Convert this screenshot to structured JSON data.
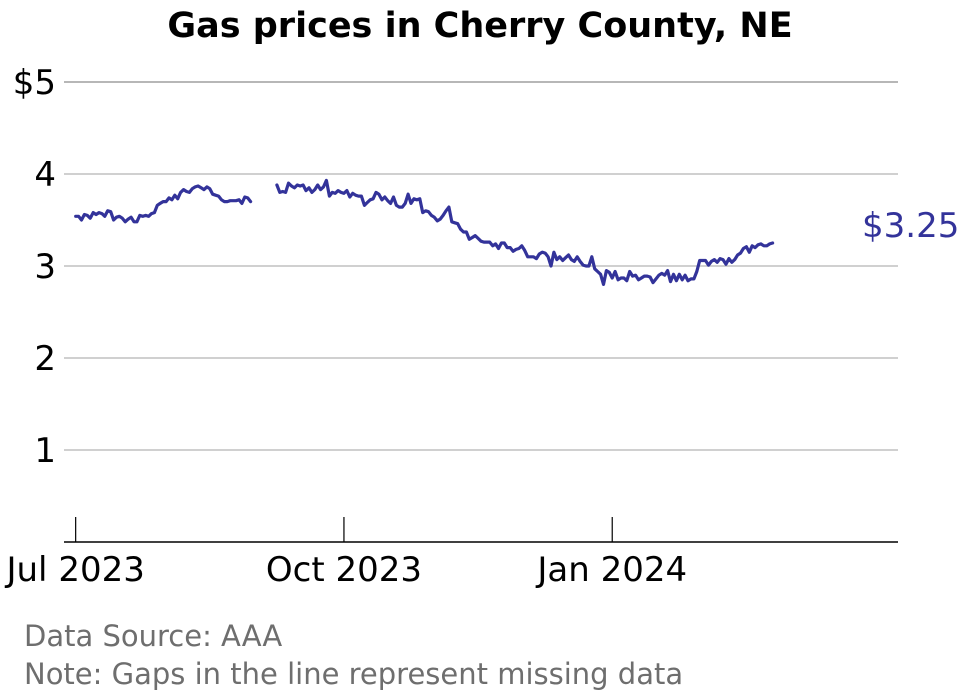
{
  "chart_data": {
    "type": "line",
    "title": "Gas prices in Cherry County, NE",
    "y_prefix": "$",
    "ylim": [
      0,
      5
    ],
    "yticks": [
      1,
      2,
      3,
      4,
      5
    ],
    "ytick_labels": [
      "1",
      "2",
      "3",
      "4",
      "$5"
    ],
    "xlim": [
      "2023-06-27",
      "2024-04-08"
    ],
    "xticks": [
      "2023-07-01",
      "2023-10-01",
      "2024-01-01"
    ],
    "xtick_labels": [
      "Jul 2023",
      "Oct 2023",
      "Jan 2024"
    ],
    "grid": true,
    "line_color": "#33339a",
    "end_label": "$3.25",
    "note_source": "Data Source: AAA",
    "note_gaps": "Note: Gaps in the line represent missing data",
    "series": [
      {
        "segments": [
          {
            "start": "2023-07-01",
            "values": [
              3.54,
              3.54,
              3.5,
              3.56,
              3.55,
              3.52,
              3.58,
              3.56,
              3.58,
              3.57,
              3.54,
              3.6,
              3.59,
              3.5,
              3.53,
              3.54,
              3.52,
              3.48,
              3.51,
              3.53,
              3.48,
              3.48,
              3.55,
              3.54,
              3.55,
              3.54,
              3.57,
              3.58,
              3.66,
              3.68,
              3.7,
              3.7,
              3.74,
              3.72,
              3.77,
              3.73,
              3.8,
              3.83,
              3.81,
              3.8,
              3.84,
              3.86,
              3.87,
              3.85,
              3.83,
              3.86,
              3.84,
              3.78,
              3.77,
              3.76,
              3.72,
              3.7,
              3.7,
              3.71,
              3.71,
              3.71,
              3.72,
              3.68,
              3.75,
              3.74,
              3.7
            ]
          },
          {
            "start": "2023-09-08",
            "values": [
              3.88,
              3.8,
              3.81,
              3.8,
              3.9,
              3.87,
              3.85,
              3.88,
              3.87,
              3.88,
              3.82,
              3.85,
              3.8,
              3.83,
              3.88,
              3.83,
              3.86,
              3.93,
              3.76,
              3.8,
              3.79,
              3.82,
              3.8,
              3.79,
              3.82,
              3.75,
              3.79,
              3.77,
              3.76,
              3.76,
              3.66,
              3.69,
              3.72,
              3.73,
              3.8,
              3.78,
              3.72,
              3.75,
              3.71,
              3.68,
              3.75,
              3.66,
              3.64,
              3.64,
              3.68,
              3.78,
              3.68,
              3.73,
              3.72,
              3.73,
              3.58,
              3.6,
              3.59,
              3.55,
              3.53,
              3.49,
              3.51,
              3.55,
              3.6,
              3.64,
              3.48,
              3.47,
              3.46,
              3.4,
              3.37,
              3.37,
              3.29,
              3.31,
              3.33,
              3.3,
              3.27,
              3.26,
              3.26,
              3.26,
              3.22,
              3.24,
              3.19,
              3.25,
              3.25,
              3.2,
              3.2,
              3.16,
              3.18,
              3.19,
              3.22,
              3.17,
              3.1,
              3.1,
              3.1,
              3.08,
              3.13,
              3.15,
              3.14,
              3.1,
              3.0,
              3.15,
              3.07,
              3.1,
              3.06,
              3.09,
              3.12,
              3.07,
              3.05,
              3.1,
              3.05,
              3.01,
              3.0,
              3.0,
              3.1,
              2.97,
              2.94,
              2.91,
              2.8,
              2.95,
              2.93,
              2.87,
              2.94,
              2.85,
              2.87,
              2.87,
              2.84,
              2.94,
              2.89,
              2.9,
              2.85,
              2.87,
              2.89,
              2.89,
              2.88,
              2.82,
              2.86,
              2.9,
              2.92,
              2.9,
              2.95,
              2.83,
              2.91,
              2.84,
              2.91,
              2.85,
              2.9,
              2.84,
              2.86,
              2.86,
              2.94,
              3.06,
              3.06,
              3.06,
              3.01,
              3.05,
              3.07,
              3.04,
              3.08,
              3.07,
              3.02,
              3.08,
              3.04,
              3.07,
              3.12,
              3.14,
              3.19,
              3.21,
              3.15,
              3.22,
              3.2,
              3.23,
              3.24,
              3.22,
              3.22,
              3.24,
              3.25
            ]
          }
        ]
      }
    ]
  }
}
